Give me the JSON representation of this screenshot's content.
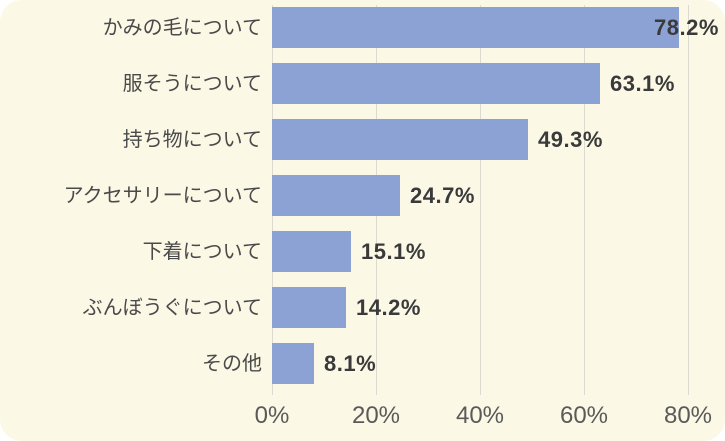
{
  "card": {
    "background_color": "#fbf8e6",
    "page_background_color": "#ffffff"
  },
  "colors": {
    "bar": "#8da2d4",
    "gridline": "#dcdad0",
    "category_text": "#4a4a4a",
    "value_text": "#3a3a3a",
    "axis_text": "#5a5a5a"
  },
  "chart_data": {
    "type": "bar",
    "orientation": "horizontal",
    "title": "",
    "categories": [
      "かみの毛について",
      "服そうについて",
      "持ち物について",
      "アクセサリーについて",
      "下着について",
      "ぶんぼうぐについて",
      "その他"
    ],
    "values": [
      78.2,
      63.1,
      49.3,
      24.7,
      15.1,
      14.2,
      8.1
    ],
    "value_labels": [
      "78.2%",
      "63.1%",
      "49.3%",
      "24.7%",
      "15.1%",
      "14.2%",
      "8.1%"
    ],
    "x_tick_values": [
      0,
      20,
      40,
      60,
      80
    ],
    "x_tick_labels": [
      "0%",
      "20%",
      "40%",
      "60%",
      "80%"
    ],
    "xlim": [
      0,
      80
    ],
    "grid": "vertical",
    "legend": "none",
    "value_label_position": "outside-end"
  }
}
